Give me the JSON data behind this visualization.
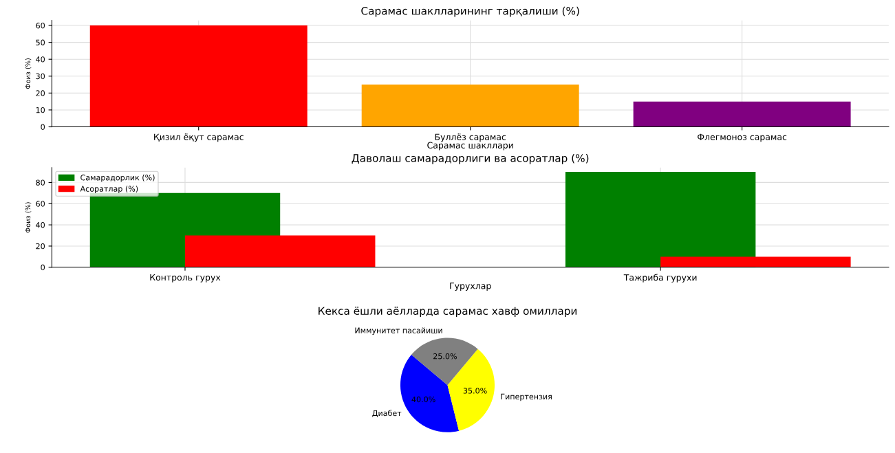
{
  "chart_data": [
    {
      "type": "bar",
      "title": "Сарамас шаклларининг тарқалиши (%)",
      "xlabel": "Сарамас шакллари",
      "ylabel": "Фоиз (%)",
      "categories": [
        "Қизил ёқут сарамас",
        "Буллёз сарамас",
        "Флегмоноз сарамас"
      ],
      "values": [
        60,
        25,
        15
      ],
      "colors": [
        "#ff0000",
        "#ffa500",
        "#800080"
      ],
      "ylim": [
        0,
        63
      ],
      "yticks": [
        0,
        10,
        20,
        30,
        40,
        50,
        60
      ],
      "grid": true
    },
    {
      "type": "bar",
      "title": "Даволаш самарадорлиги ва асоратлар (%)",
      "xlabel": "Гурухлар",
      "ylabel": "Фоиз (%)",
      "categories": [
        "Контроль гурух",
        "Тажриба гурухи"
      ],
      "series": [
        {
          "name": "Самарадорлик (%)",
          "color": "#008000",
          "values": [
            70,
            90
          ]
        },
        {
          "name": "Асоратлар (%)",
          "color": "#ff0000",
          "values": [
            30,
            10
          ]
        }
      ],
      "ylim": [
        0,
        94
      ],
      "yticks": [
        0,
        20,
        40,
        60,
        80
      ],
      "grid": true,
      "legend": "top left"
    },
    {
      "type": "pie",
      "title": "Кекса ёшли аёлларда сарамас хавф омиллари",
      "categories": [
        "Диабет",
        "Гипертензия",
        "Иммунитет пасайиши"
      ],
      "values": [
        40,
        35,
        25
      ],
      "colors": [
        "#0000ff",
        "#ffff00",
        "#808080"
      ],
      "value_labels": [
        "40.0%",
        "35.0%",
        "25.0%"
      ]
    }
  ]
}
